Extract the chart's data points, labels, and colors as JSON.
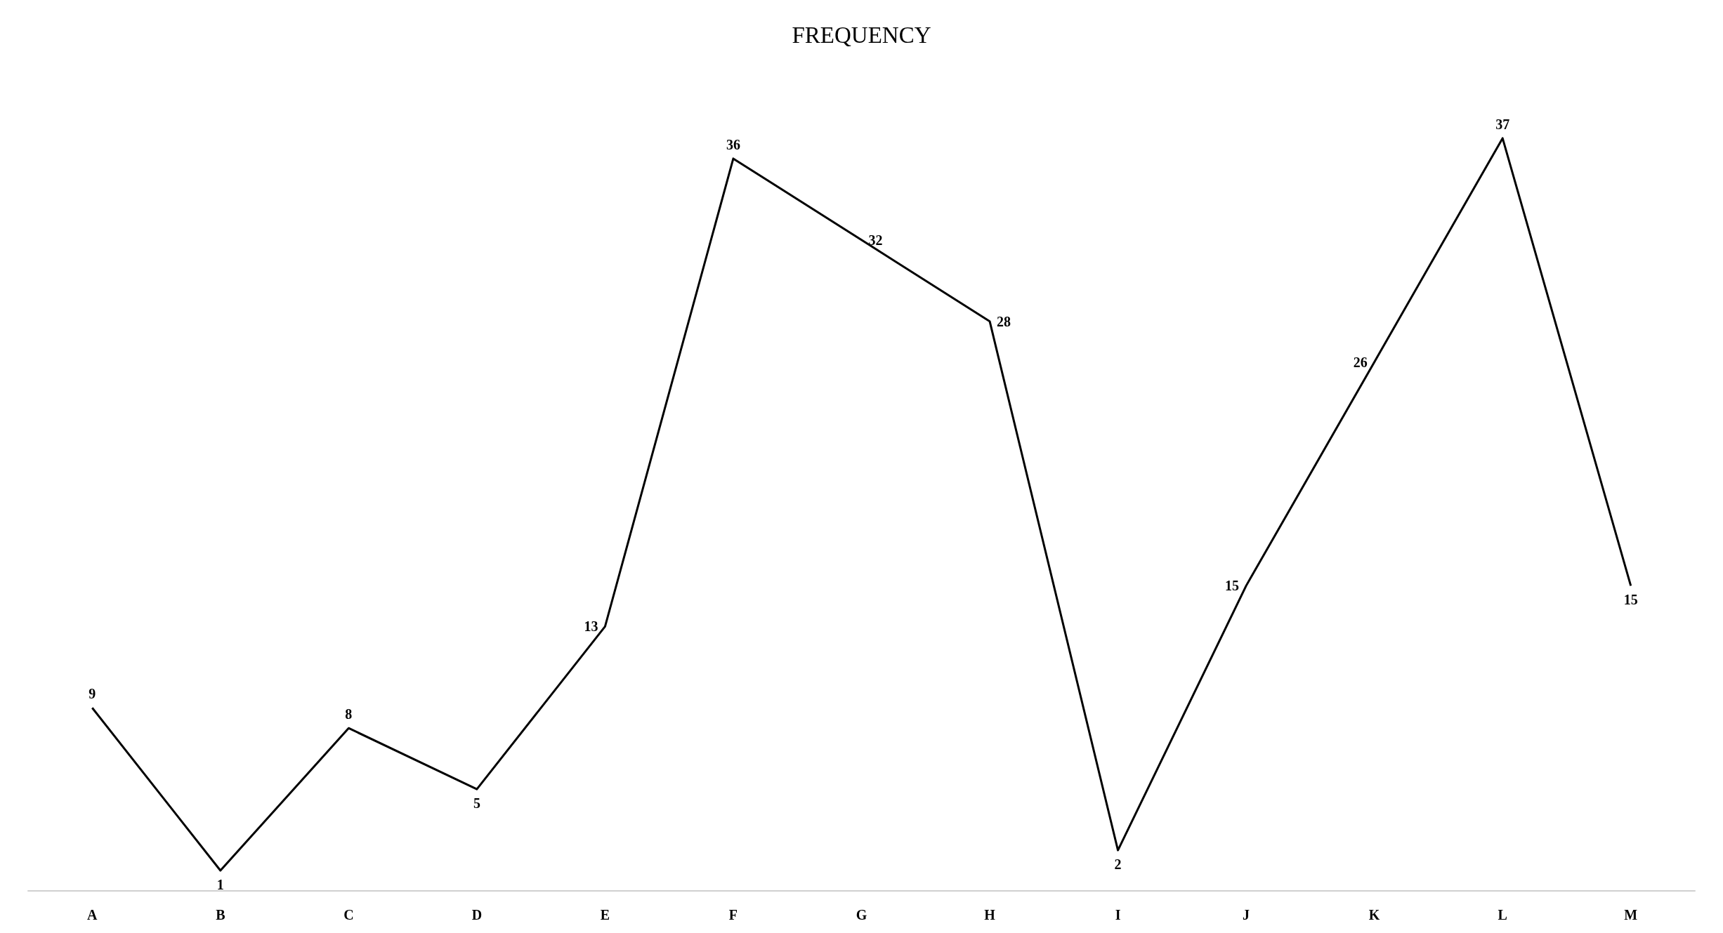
{
  "chart_data": {
    "type": "line",
    "title": "FREQUENCY",
    "categories": [
      "A",
      "B",
      "C",
      "D",
      "E",
      "F",
      "G",
      "H",
      "I",
      "J",
      "K",
      "L",
      "M"
    ],
    "series": [
      {
        "color": "#000000",
        "values": [
          9,
          1,
          8,
          5,
          13,
          36,
          32,
          28,
          2,
          15,
          26,
          37,
          15
        ]
      }
    ],
    "data_labels": true,
    "grid": false,
    "tick_labels": "x"
  }
}
